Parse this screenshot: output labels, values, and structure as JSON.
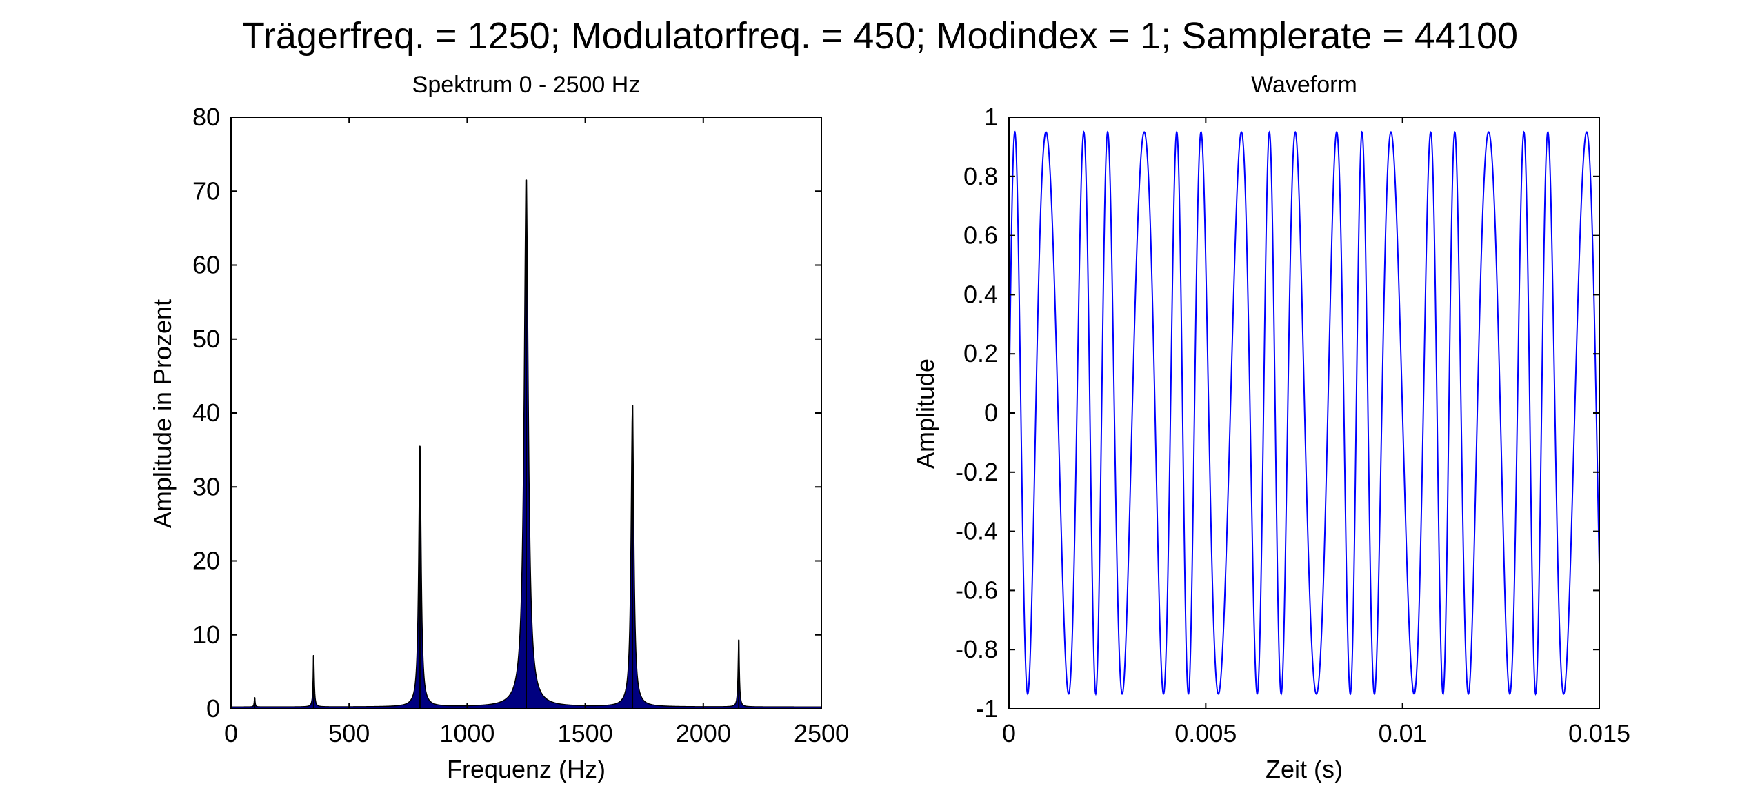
{
  "figure": {
    "suptitle": "Trägerfreq. = 1250;  Modulatorfreq. = 450;  Modindex = 1;  Samplerate = 44100",
    "colors": {
      "spectrum_fill": "#000080",
      "spectrum_edge": "#000000",
      "waveform_line": "#0000ff",
      "axes": "#000000",
      "background": "#ffffff"
    }
  },
  "chart_data": [
    {
      "type": "area",
      "title": "Spektrum 0 - 2500 Hz",
      "xlabel": "Frequenz (Hz)",
      "ylabel": "Amplitude in Prozent",
      "xlim": [
        0,
        2500
      ],
      "ylim": [
        0,
        80
      ],
      "xticks": [
        0,
        500,
        1000,
        1500,
        2000,
        2500
      ],
      "yticks": [
        0,
        10,
        20,
        30,
        40,
        50,
        60,
        70,
        80
      ],
      "grid": false,
      "peaks": [
        {
          "x": 100,
          "y": 1.5
        },
        {
          "x": 350,
          "y": 7.2
        },
        {
          "x": 800,
          "y": 35.5
        },
        {
          "x": 1250,
          "y": 71.5
        },
        {
          "x": 1700,
          "y": 41
        },
        {
          "x": 2150,
          "y": 9.3
        }
      ]
    },
    {
      "type": "line",
      "title": "Waveform",
      "xlabel": "Zeit (s)",
      "ylabel": "Amplitude",
      "xlim": [
        0,
        0.015
      ],
      "ylim": [
        -1,
        1
      ],
      "xticks": [
        0,
        0.005,
        0.01,
        0.015
      ],
      "yticks": [
        -1,
        -0.8,
        -0.6,
        -0.4,
        -0.2,
        0,
        0.2,
        0.4,
        0.6,
        0.8,
        1
      ],
      "grid": false,
      "signal": {
        "carrier_hz": 1250,
        "modulator_hz": 450,
        "mod_index": 1,
        "peak_amplitude": 0.95,
        "samplerate": 44100
      }
    }
  ]
}
